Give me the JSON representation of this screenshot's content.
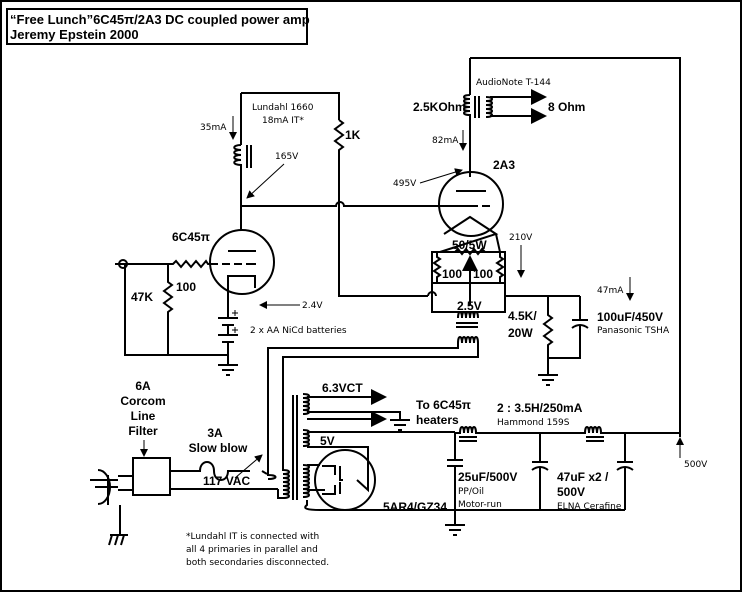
{
  "title": {
    "line1": "“Free Lunch”6C45π/2A3 DC coupled power amp",
    "line2": "Jeremy Epstein  2000"
  },
  "driver": {
    "it_name": "Lundahl 1660",
    "it_spec": "18mA IT*",
    "current": "35mA",
    "plate_voltage": "165V",
    "resistor_1k": "1K",
    "tube": "6C45π",
    "grid_resistor": "100",
    "input_resistor": "47K",
    "bias_voltage": "2.4V",
    "batteries": "2 x AA NiCd batteries"
  },
  "output": {
    "transformer": "AudioNote T-144",
    "primary": "2.5KOhm",
    "secondary": "8 Ohm",
    "current": "82mA",
    "tube": "2A3",
    "plate_voltage": "495V",
    "hum_pot": "50/5W",
    "fil_r1": "100",
    "fil_r2": "100",
    "fil_voltage": "2.5V",
    "cathode_voltage": "210V",
    "bleeder": "4.5K/",
    "bleeder_w": "20W",
    "bypass_current": "47mA",
    "bypass_cap": "100uF/450V",
    "bypass_brand": "Panasonic TSHA"
  },
  "power": {
    "filter1": "6A",
    "filter2": "Corcom",
    "filter3": "Line",
    "filter4": "Filter",
    "fuse1": "3A",
    "fuse2": "Slow blow",
    "mains": "117 VAC",
    "heater_winding": "6.3VCT",
    "heater_to1": "To 6C45π",
    "heater_to2": "heaters",
    "rect_winding": "5V",
    "rectifier": "5AR4/GZ34",
    "choke": "2 : 3.5H/250mA",
    "choke_brand": "Hammond 159S",
    "cap1": "25uF/500V",
    "cap1_type": "PP/Oil",
    "cap1_type2": "Motor-run",
    "cap2": "47uF x2 /",
    "cap2_v": "500V",
    "cap2_brand": "ELNA Cerafine",
    "b_plus": "500V"
  },
  "footnote": {
    "line1": "*Lundahl IT is connected with",
    "line2": "all 4 primaries in parallel and",
    "line3": "both secondaries disconnected."
  }
}
